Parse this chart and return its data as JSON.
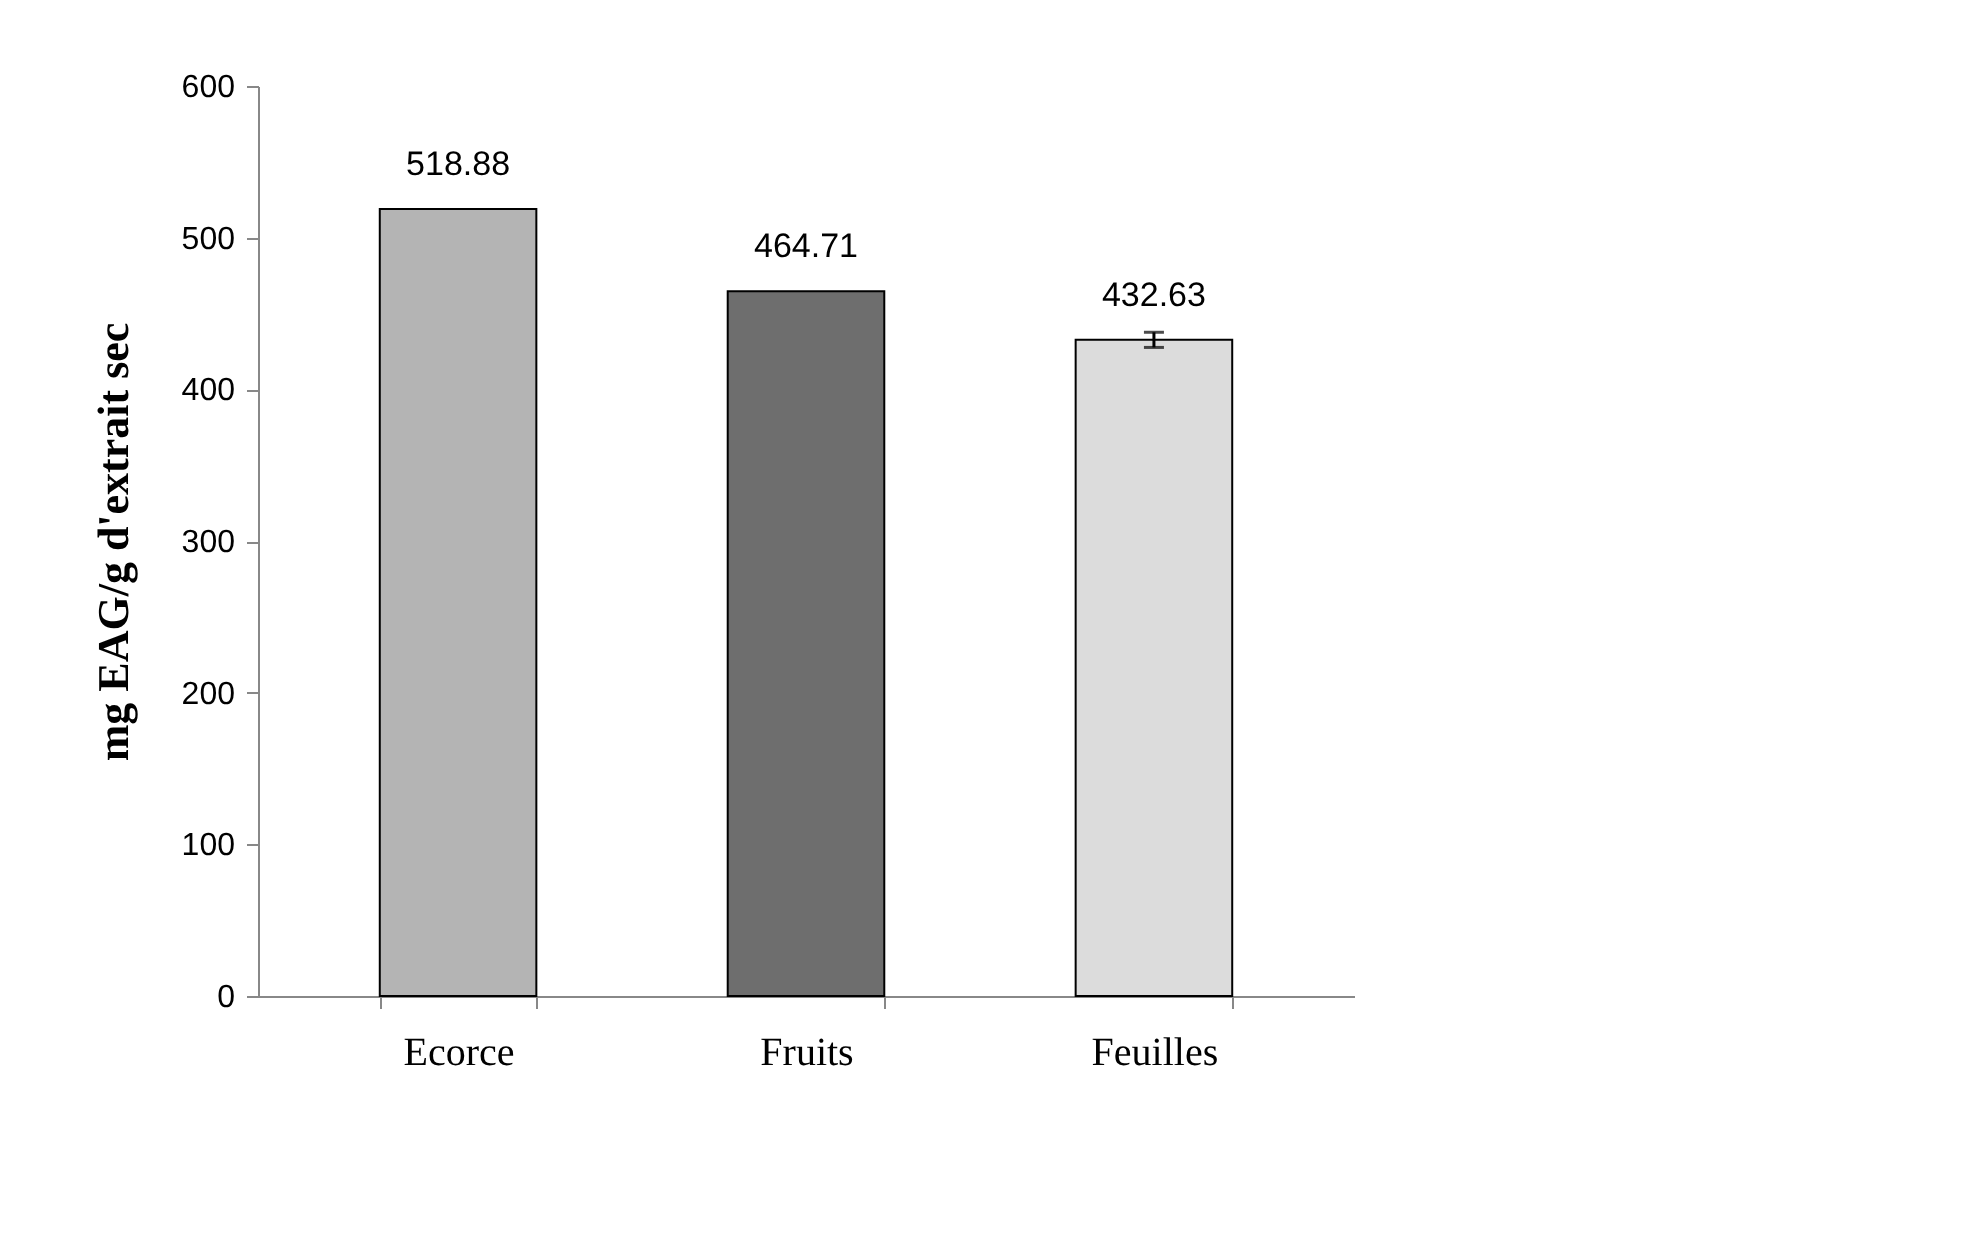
{
  "chart_data": {
    "type": "bar",
    "ylabel": "mg EAG/g d'extrait sec",
    "categories": [
      "Ecorce",
      "Fruits",
      "Feuilles"
    ],
    "values": [
      518.88,
      464.71,
      432.63
    ],
    "colors": [
      "#b4b4b4",
      "#6e6e6e",
      "#dcdcdc"
    ],
    "errors": [
      null,
      null,
      5
    ],
    "ylim": [
      0,
      600
    ],
    "yticks": [
      0,
      100,
      200,
      300,
      400,
      500,
      600
    ],
    "data_labels": true
  }
}
